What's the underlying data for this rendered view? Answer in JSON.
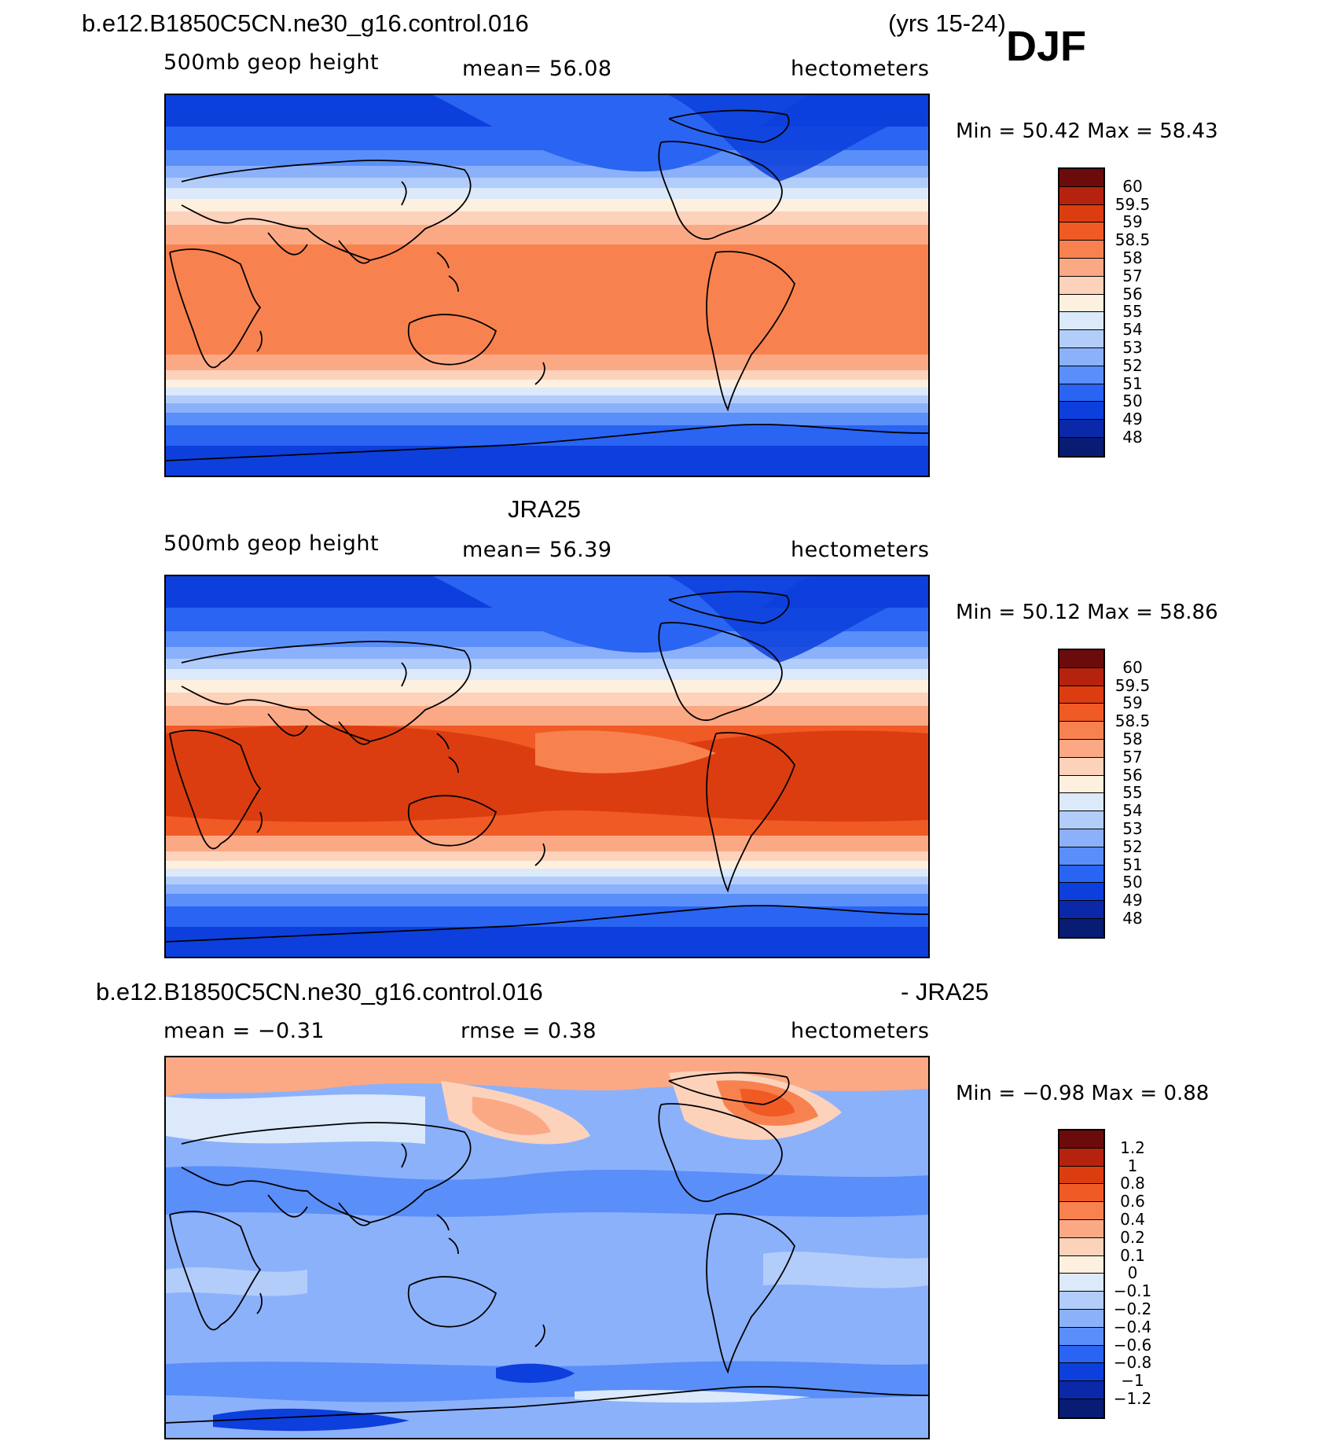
{
  "header": {
    "case_name": "b.e12.B1850C5CN.ne30_g16.control.016",
    "years": "(yrs 15-24)",
    "season": "DJF"
  },
  "panels": [
    {
      "id": "model",
      "title": "",
      "variable": "500mb geop height",
      "stat_text": "mean=   56.08",
      "units": "hectometers",
      "minmax": "Min =   50.42  Max =   58.43",
      "colorbar_colors": [
        "#6b0b0b",
        "#b5230f",
        "#dc3d10",
        "#f05a25",
        "#f8824f",
        "#fba985",
        "#fdd2bb",
        "#fdf0df",
        "#dbe9fb",
        "#b3cdfb",
        "#8cb1fb",
        "#5a8ef8",
        "#2a64f2",
        "#0d3fdc",
        "#0a28a8",
        "#071c72"
      ],
      "colorbar_labels": [
        "60",
        "59.5",
        "59",
        "58.5",
        "58",
        "57",
        "56",
        "55",
        "54",
        "53",
        "52",
        "51",
        "50",
        "49",
        "48"
      ],
      "field": "model"
    },
    {
      "id": "obs",
      "title": "JRA25",
      "variable": "500mb geop height",
      "stat_text": "mean=   56.39",
      "units": "hectometers",
      "minmax": "Min =   50.12  Max =   58.86",
      "colorbar_colors": [
        "#6b0b0b",
        "#b5230f",
        "#dc3d10",
        "#f05a25",
        "#f8824f",
        "#fba985",
        "#fdd2bb",
        "#fdf0df",
        "#dbe9fb",
        "#b3cdfb",
        "#8cb1fb",
        "#5a8ef8",
        "#2a64f2",
        "#0d3fdc",
        "#0a28a8",
        "#071c72"
      ],
      "colorbar_labels": [
        "60",
        "59.5",
        "59",
        "58.5",
        "58",
        "57",
        "56",
        "55",
        "54",
        "53",
        "52",
        "51",
        "50",
        "49",
        "48"
      ],
      "field": "obs"
    },
    {
      "id": "diff",
      "title": "b.e12.B1850C5CN.ne30_g16.control.016",
      "title_right": "- JRA25",
      "variable": "mean =   −0.31",
      "stat_text": "rmse =    0.38",
      "units": "hectometers",
      "minmax": "Min =   −0.98  Max =    0.88",
      "colorbar_colors": [
        "#6b0b0b",
        "#b5230f",
        "#dc3d10",
        "#f05a25",
        "#f8824f",
        "#fba985",
        "#fdd2bb",
        "#fdf0df",
        "#dbe9fb",
        "#b3cdfb",
        "#8cb1fb",
        "#5a8ef8",
        "#2a64f2",
        "#0d3fdc",
        "#0a28a8",
        "#071c72"
      ],
      "colorbar_labels": [
        "1.2",
        "1",
        "0.8",
        "0.6",
        "0.4",
        "0.2",
        "0.1",
        "0",
        "−0.1",
        "−0.2",
        "−0.4",
        "−0.6",
        "−0.8",
        "−1",
        "−1.2"
      ],
      "field": "diff"
    }
  ]
}
